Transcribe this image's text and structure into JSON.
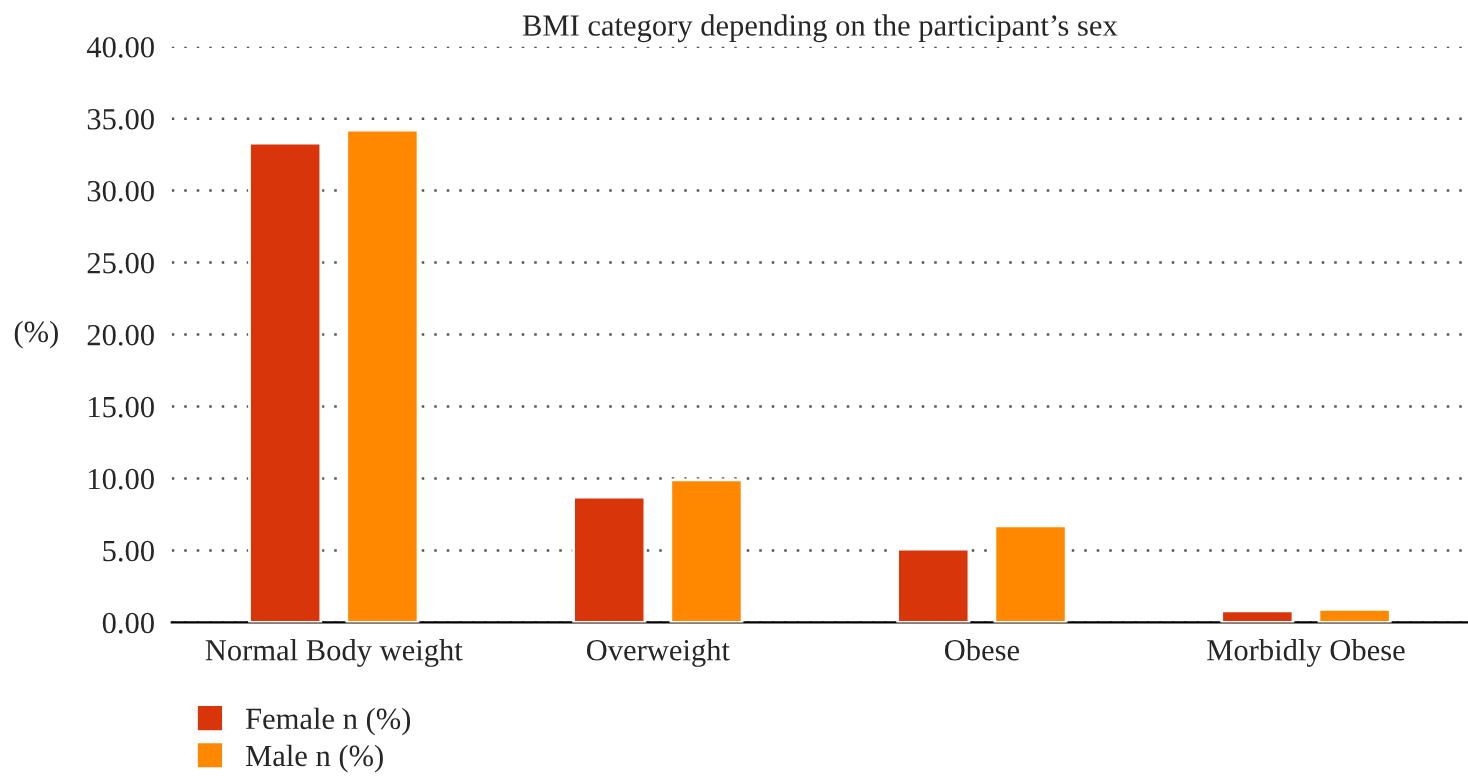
{
  "chart_data": {
    "type": "bar",
    "title": "BMI category depending on the participant’s sex",
    "ylabel": "(%)",
    "categories": [
      "Normal Body weight",
      "Overweight",
      "Obese",
      "Morbidly Obese"
    ],
    "series": [
      {
        "name": "Female n (%)",
        "color": "#d9350b",
        "values": [
          33.3,
          8.7,
          5.1,
          0.8
        ]
      },
      {
        "name": "Male n (%)",
        "color": "#ff8800",
        "values": [
          34.2,
          9.9,
          6.7,
          0.9
        ]
      }
    ],
    "ylim": [
      0,
      40
    ],
    "yticks": [
      {
        "value": 0,
        "label": "0.00"
      },
      {
        "value": 5,
        "label": "5.00"
      },
      {
        "value": 10,
        "label": "10.00"
      },
      {
        "value": 15,
        "label": "15.00"
      },
      {
        "value": 20,
        "label": "20.00"
      },
      {
        "value": 25,
        "label": "25.00"
      },
      {
        "value": 30,
        "label": "30.00"
      },
      {
        "value": 35,
        "label": "35.00"
      },
      {
        "value": 40,
        "label": "40.00"
      }
    ],
    "grid": "y",
    "legend": "bottom left"
  }
}
